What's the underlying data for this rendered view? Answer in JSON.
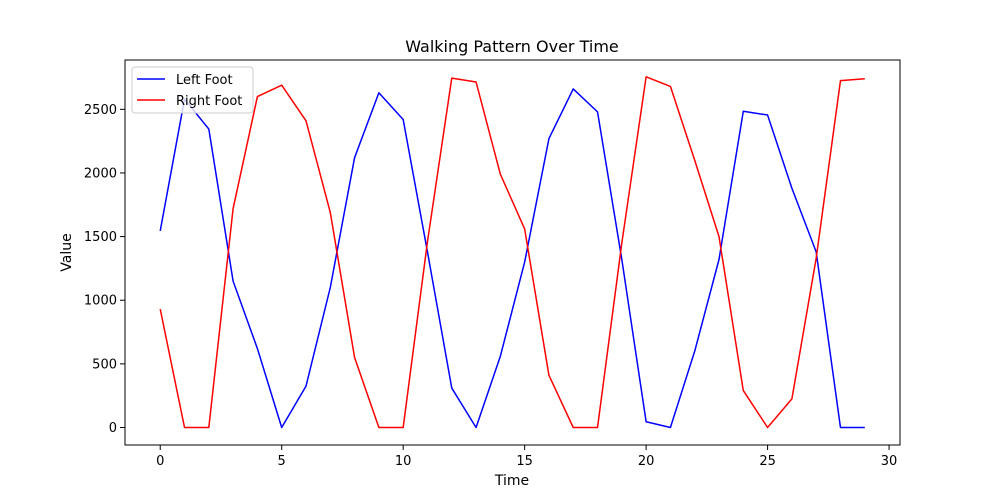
{
  "chart_data": {
    "type": "line",
    "title": "Walking Pattern Over Time",
    "xlabel": "Time",
    "ylabel": "Value",
    "xlim": [
      -1.45,
      30.45
    ],
    "ylim": [
      -137.5,
      2887.5
    ],
    "xticks": [
      0,
      5,
      10,
      15,
      20,
      25,
      30
    ],
    "yticks": [
      0,
      500,
      1000,
      1500,
      2000,
      2500
    ],
    "grid": false,
    "legend_position": "top-left",
    "x": [
      0,
      1,
      2,
      3,
      4,
      5,
      6,
      7,
      8,
      9,
      10,
      11,
      12,
      13,
      14,
      15,
      16,
      17,
      18,
      19,
      20,
      21,
      22,
      23,
      24,
      25,
      26,
      27,
      28,
      29
    ],
    "series": [
      {
        "name": "Left Foot",
        "color": "#0000ff",
        "values": [
          1545,
          2580,
          2345,
          1150,
          620,
          0,
          325,
          1100,
          2120,
          2630,
          2420,
          1380,
          310,
          0,
          560,
          1300,
          2270,
          2660,
          2480,
          1320,
          45,
          0,
          600,
          1320,
          2485,
          2455,
          1880,
          1380,
          0,
          0
        ]
      },
      {
        "name": "Right Foot",
        "color": "#ff0000",
        "values": [
          930,
          0,
          0,
          1720,
          2600,
          2690,
          2410,
          1690,
          550,
          0,
          0,
          1460,
          2745,
          2715,
          1990,
          1560,
          410,
          0,
          0,
          1450,
          2755,
          2680,
          2100,
          1500,
          290,
          0,
          225,
          1330,
          2725,
          2740
        ]
      }
    ]
  }
}
